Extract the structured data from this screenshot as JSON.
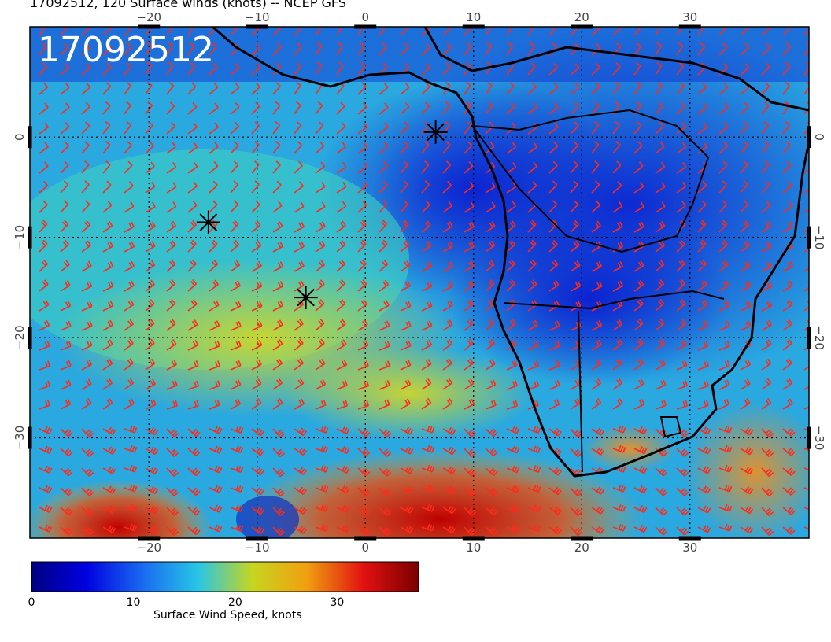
{
  "title": "17092512, 120 Surface winds (knots) -- NCEP GFS",
  "stamp": "17092512",
  "map": {
    "lon_ticks": [
      -20,
      -10,
      0,
      10,
      20,
      30
    ],
    "lat_ticks": [
      0,
      -10,
      -20,
      -30
    ],
    "lon_range": [
      -31,
      41
    ],
    "lat_range": [
      11,
      -40
    ]
  },
  "markers": [
    {
      "name": "star-marker-1",
      "lon": 6.5,
      "lat": 0.5
    },
    {
      "name": "star-marker-2",
      "lon": -14.5,
      "lat": -8.5
    },
    {
      "name": "star-marker-3",
      "lon": -5.5,
      "lat": -16.0
    }
  ],
  "colorbar": {
    "label": "Surface Wind Speed, knots",
    "ticks": [
      0,
      10,
      20,
      30
    ],
    "max": 38,
    "colors": [
      "#000080",
      "#0000e0",
      "#1a6cf0",
      "#27c6e6",
      "#c6d520",
      "#f0a010",
      "#e01010",
      "#7a0000"
    ]
  },
  "colors": {
    "barb": "#ff2a1a",
    "land_outline": "#000000"
  }
}
